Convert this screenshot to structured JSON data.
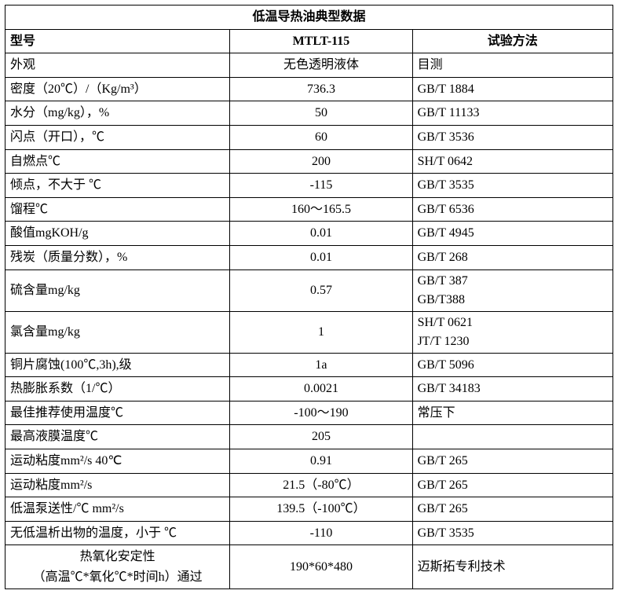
{
  "title": "低温导热油典型数据",
  "header": {
    "label": "型号",
    "value": "MTLT-115",
    "method": "试验方法"
  },
  "rows": [
    {
      "label": "外观",
      "value": "无色透明液体",
      "method": "目测"
    },
    {
      "label": "密度（20℃）/（Kg/m³）",
      "value": "736.3",
      "method": "GB/T 1884"
    },
    {
      "label": "水分（mg/kg），%",
      "value": "50",
      "method": "GB/T 11133"
    },
    {
      "label": "闪点（开口），℃",
      "value": "60",
      "method": "GB/T 3536"
    },
    {
      "label": "自燃点℃",
      "value": "200",
      "method": "SH/T 0642"
    },
    {
      "label": "倾点，不大于 ℃",
      "value": "-115",
      "method": "GB/T 3535"
    },
    {
      "label": "馏程℃",
      "value": "160～165.5",
      "method": "GB/T 6536"
    },
    {
      "label": "酸值mgKOH/g",
      "value": "0.01",
      "method": "GB/T 4945"
    },
    {
      "label": "残炭（质量分数），%",
      "value": "0.01",
      "method": "GB/T 268"
    },
    {
      "label": "硫含量mg/kg",
      "value": "0.57",
      "method": "GB/T 387\nGB/T388",
      "multi": true
    },
    {
      "label": "氯含量mg/kg",
      "value": "1",
      "method": "SH/T 0621\nJT/T 1230",
      "multi": true
    },
    {
      "label": "铜片腐蚀(100℃,3h),级",
      "value": "1a",
      "method": "GB/T 5096"
    },
    {
      "label": "热膨胀系数（1/℃）",
      "value": "0.0021",
      "method": "GB/T 34183"
    },
    {
      "label": "最佳推荐使用温度℃",
      "value": "-100～190",
      "method": "常压下"
    },
    {
      "label": "最高液膜温度℃",
      "value": "205",
      "method": ""
    },
    {
      "label": "运动粘度mm²/s 40℃",
      "value": "0.91",
      "method": "GB/T 265"
    },
    {
      "label": "运动粘度mm²/s",
      "value": "21.5（-80℃）",
      "method": "GB/T 265"
    },
    {
      "label": "低温泵送性/℃ mm²/s",
      "value": "139.5（-100℃）",
      "method": "GB/T 265"
    },
    {
      "label": "无低温析出物的温度，小于 ℃",
      "value": "-110",
      "method": "GB/T 3535"
    },
    {
      "label": "热氧化安定性\n（高温℃*氧化℃*时间h）通过",
      "value": "190*60*480",
      "method": "迈斯拓专利技术",
      "labelCenter": true,
      "multiLabel": true
    }
  ],
  "style": {
    "font_family": "SimSun",
    "font_size_pt": 12,
    "border_color": "#000000",
    "background_color": "#ffffff",
    "text_color": "#000000",
    "col_widths_pct": [
      37,
      30,
      33
    ]
  }
}
